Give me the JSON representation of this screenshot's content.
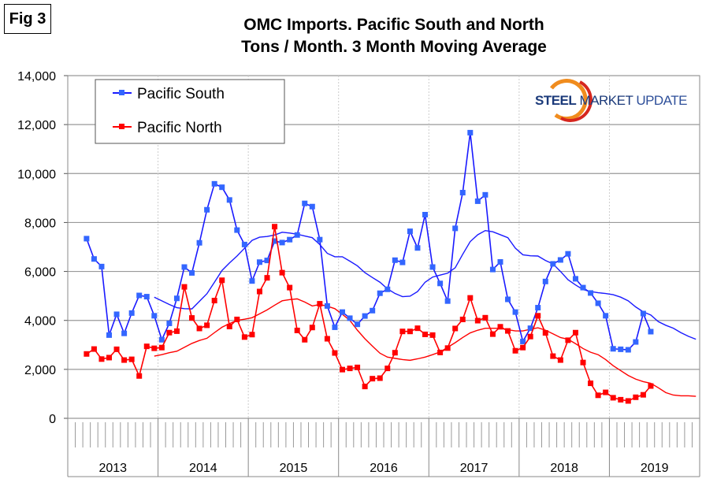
{
  "figure_label": "Fig 3",
  "logo": {
    "word1": "STEEL",
    "word2": "MARKET",
    "word3": "UPDATE",
    "navy": "#1b3a7a",
    "orange": "#f08c1e",
    "red": "#d6261e"
  },
  "chart_data": {
    "type": "line",
    "title": "OMC Imports. Pacific South and North",
    "subtitle": "Tons / Month. 3 Month Moving Average",
    "xlabel": "",
    "ylabel": "",
    "ylim": [
      0,
      14000
    ],
    "yticks": [
      "0",
      "2,000",
      "4,000",
      "6,000",
      "8,000",
      "10,000",
      "12,000",
      "14,000"
    ],
    "ytick_values": [
      0,
      2000,
      4000,
      6000,
      8000,
      10000,
      12000,
      14000
    ],
    "x_years": [
      "2013",
      "2014",
      "2015",
      "2016",
      "2017",
      "2018",
      "2019"
    ],
    "x_unit": "month",
    "grid": "horizontal",
    "legend_position": "top-left",
    "series": [
      {
        "name": "Pacific South",
        "color": "#1a1aff",
        "marker_color": "#3366ff",
        "start": "2013-03",
        "values": [
          7340,
          6510,
          6200,
          3400,
          4250,
          3470,
          4300,
          5020,
          4970,
          4190,
          3210,
          3880,
          4900,
          6180,
          5940,
          7170,
          8520,
          9580,
          9440,
          8920,
          7690,
          7100,
          5610,
          6380,
          6450,
          7240,
          7180,
          7300,
          7490,
          8780,
          8650,
          7300,
          4590,
          3720,
          4340,
          4090,
          3840,
          4180,
          4400,
          5110,
          5270,
          6460,
          6370,
          7640,
          6960,
          8320,
          6180,
          5510,
          4790,
          7760,
          9220,
          11670,
          8870,
          9130,
          6080,
          6390,
          4860,
          4340,
          3140,
          3680,
          4520,
          5590,
          6310,
          6470,
          6720,
          5700,
          5340,
          5120,
          4700,
          4190,
          2840,
          2820,
          2800,
          3120,
          4280,
          3540
        ]
      },
      {
        "name": "Pacific North",
        "color": "#ff0000",
        "marker_color": "#ff0000",
        "start": "2013-03",
        "values": [
          2630,
          2830,
          2420,
          2480,
          2820,
          2380,
          2410,
          1730,
          2940,
          2860,
          2890,
          3500,
          3560,
          5370,
          4100,
          3670,
          3800,
          4810,
          5640,
          3750,
          4040,
          3320,
          3420,
          5180,
          5740,
          7830,
          5950,
          5340,
          3590,
          3210,
          3710,
          4680,
          3250,
          2670,
          1990,
          2040,
          2080,
          1300,
          1620,
          1640,
          2040,
          2680,
          3550,
          3550,
          3680,
          3430,
          3400,
          2690,
          2870,
          3670,
          4040,
          4920,
          3990,
          4110,
          3440,
          3740,
          3570,
          2760,
          2890,
          3340,
          4190,
          3490,
          2540,
          2380,
          3190,
          3500,
          2280,
          1430,
          940,
          1060,
          840,
          760,
          710,
          860,
          960,
          1320
        ]
      }
    ],
    "moving_averages": [
      {
        "of": "Pacific South",
        "color": "#1a1aff",
        "start": "2013-12",
        "values": [
          4950,
          4800,
          4650,
          4520,
          4480,
          4470,
          4780,
          5090,
          5560,
          6040,
          6350,
          6630,
          6950,
          7270,
          7400,
          7430,
          7490,
          7600,
          7570,
          7520,
          7450,
          7380,
          7100,
          6740,
          6600,
          6600,
          6420,
          6230,
          5950,
          5750,
          5560,
          5290,
          5100,
          4970,
          4990,
          5180,
          5560,
          5770,
          5850,
          5930,
          6150,
          6700,
          7220,
          7500,
          7670,
          7620,
          7500,
          7380,
          6950,
          6680,
          6640,
          6630,
          6450,
          6310,
          6000,
          5660,
          5450,
          5260,
          5180,
          5130,
          5100,
          5050,
          4950,
          4800,
          4550,
          4350,
          4220,
          3950,
          3800,
          3680,
          3500,
          3350,
          3230
        ]
      },
      {
        "of": "Pacific North",
        "color": "#ff0000",
        "start": "2013-12",
        "values": [
          2540,
          2600,
          2680,
          2740,
          2900,
          3060,
          3180,
          3270,
          3500,
          3720,
          3870,
          4000,
          4050,
          4110,
          4270,
          4430,
          4620,
          4800,
          4850,
          4880,
          4750,
          4590,
          4650,
          4580,
          4480,
          4250,
          4000,
          3600,
          3250,
          2950,
          2660,
          2500,
          2450,
          2400,
          2370,
          2430,
          2500,
          2600,
          2710,
          2900,
          3090,
          3300,
          3490,
          3600,
          3680,
          3680,
          3680,
          3620,
          3570,
          3570,
          3640,
          3700,
          3600,
          3450,
          3300,
          3230,
          3050,
          2850,
          2700,
          2600,
          2400,
          2150,
          1950,
          1750,
          1600,
          1500,
          1430,
          1250,
          1050,
          950,
          920,
          920,
          900
        ]
      }
    ]
  }
}
